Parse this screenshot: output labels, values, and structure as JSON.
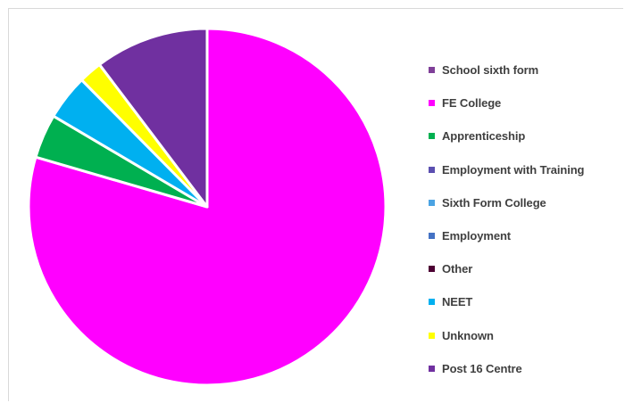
{
  "chart_data": {
    "type": "pie",
    "title": "",
    "legend_position": "right",
    "slices": [
      {
        "label": "School sixth form",
        "value": 0,
        "color": "#7f3f98"
      },
      {
        "label": "FE College",
        "value": 79.5,
        "color": "#ff00ff"
      },
      {
        "label": "Apprenticeship",
        "value": 4,
        "color": "#00b050"
      },
      {
        "label": "Employment with Training",
        "value": 0,
        "color": "#5b4fb0"
      },
      {
        "label": "Sixth Form College",
        "value": 0,
        "color": "#4ba3e3"
      },
      {
        "label": "Employment",
        "value": 0,
        "color": "#4472c4"
      },
      {
        "label": "Other",
        "value": 0,
        "color": "#4d0033"
      },
      {
        "label": "NEET",
        "value": 4.1,
        "color": "#00b0f0"
      },
      {
        "label": "Unknown",
        "value": 2.1,
        "color": "#ffff00"
      },
      {
        "label": "Post 16 Centre",
        "value": 10.3,
        "color": "#7030a0"
      }
    ]
  }
}
